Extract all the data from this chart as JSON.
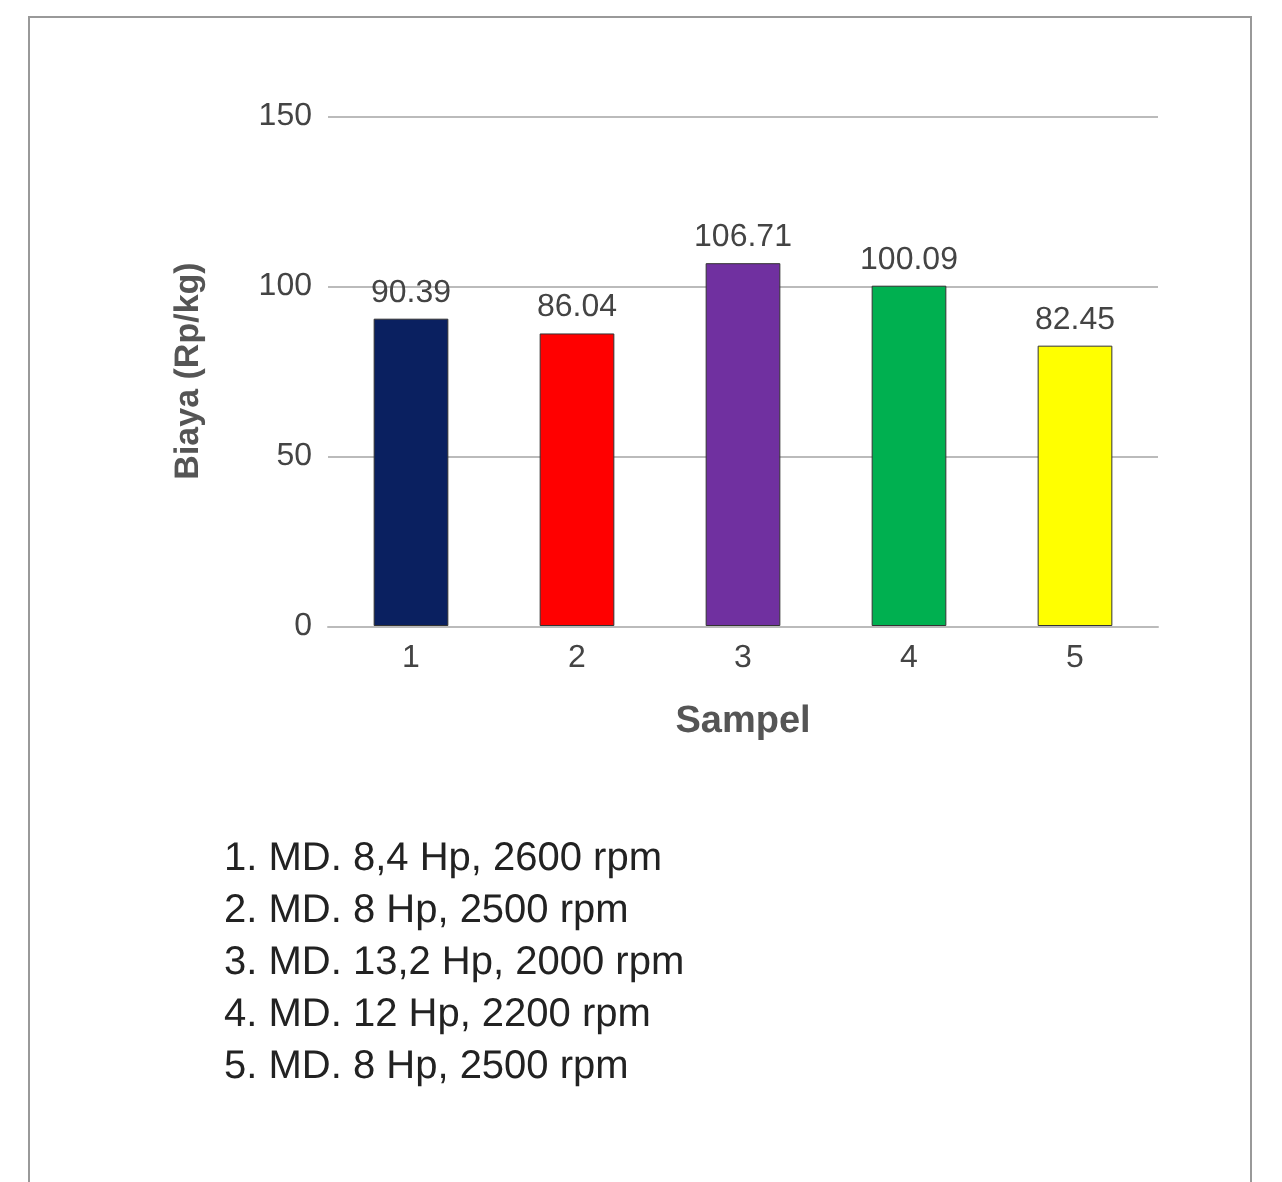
{
  "chart_data": {
    "type": "bar",
    "xlabel": "Sampel",
    "ylabel": "Biaya (Rp/kg)",
    "categories": [
      "1",
      "2",
      "3",
      "4",
      "5"
    ],
    "values": [
      90.39,
      86.04,
      106.71,
      100.09,
      82.45
    ],
    "colors": [
      "#0a2060",
      "#ff0000",
      "#7030a0",
      "#00b050",
      "#ffff00"
    ],
    "ylim": [
      0,
      150
    ],
    "yticks": [
      0,
      50,
      100,
      150
    ],
    "grid": "y",
    "data_labels": true,
    "annotations": [
      "1.  MD. 8,4 Hp, 2600 rpm",
      "2.  MD. 8 Hp, 2500 rpm",
      "3.  MD. 13,2 Hp, 2000 rpm",
      "4.  MD. 12 Hp, 2200 rpm",
      "5.  MD. 8 Hp, 2500 rpm"
    ]
  }
}
